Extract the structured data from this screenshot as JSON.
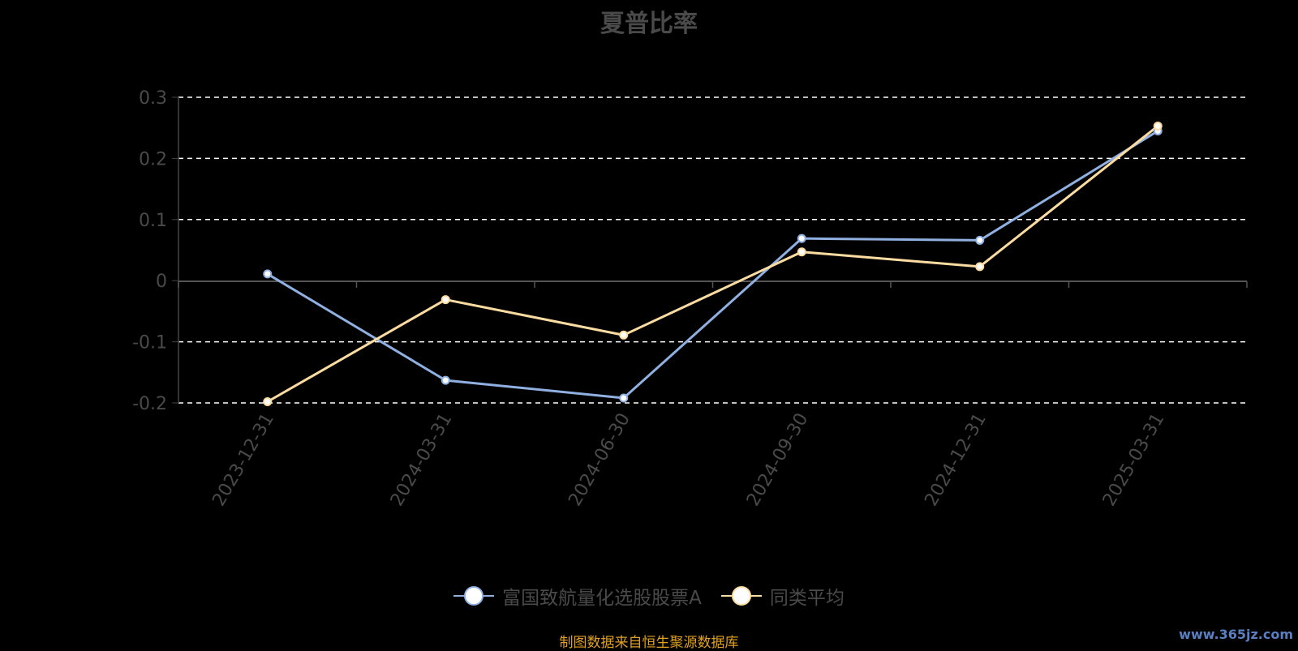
{
  "chart_data": {
    "type": "line",
    "title": "夏普比率",
    "categories": [
      "2023-12-31",
      "2024-03-31",
      "2024-06-30",
      "2024-09-30",
      "2024-12-31",
      "2025-03-31"
    ],
    "series": [
      {
        "name": "富国致航量化选股股票A",
        "color": "#8fb0e0",
        "values": [
          0.011,
          -0.163,
          -0.192,
          0.069,
          0.066,
          0.245
        ]
      },
      {
        "name": "同类平均",
        "color": "#fcdca0",
        "values": [
          -0.198,
          -0.031,
          -0.089,
          0.047,
          0.023,
          0.253
        ]
      }
    ],
    "ylim": [
      -0.2,
      0.3
    ],
    "yticks": [
      "0.3",
      "0.2",
      "0.1",
      "0",
      "-0.1",
      "-0.2"
    ],
    "ytick_values": [
      0.3,
      0.2,
      0.1,
      0,
      -0.1,
      -0.2
    ],
    "grid": true,
    "legend_position": "bottom-center"
  },
  "source_note": "制图数据来自恒生聚源数据库",
  "watermark": "www.365jz.com"
}
